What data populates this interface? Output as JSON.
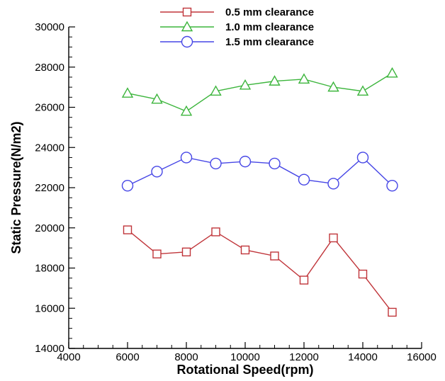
{
  "chart_data": {
    "type": "line",
    "title": "",
    "xlabel": "Rotational Speed(rpm)",
    "ylabel": "Static Pressure(N/m2)",
    "xlim": [
      4000,
      16000
    ],
    "ylim": [
      14000,
      30000
    ],
    "xticks": [
      4000,
      6000,
      8000,
      10000,
      12000,
      14000,
      16000
    ],
    "yticks": [
      14000,
      16000,
      18000,
      20000,
      22000,
      24000,
      26000,
      28000,
      30000
    ],
    "xtick_labels": [
      "4000",
      "6000",
      "8000",
      "10000",
      "12000",
      "14000",
      "16000"
    ],
    "ytick_labels": [
      "14000",
      "16000",
      "18000",
      "20000",
      "22000",
      "24000",
      "26000",
      "28000",
      "30000"
    ],
    "grid": false,
    "legend_position": "top-center",
    "x": [
      6000,
      7000,
      8000,
      9000,
      10000,
      11000,
      12000,
      13000,
      14000,
      15000
    ],
    "series": [
      {
        "name": "0.5 mm clearance",
        "color": "#c0353a",
        "marker": "square",
        "values": [
          19900,
          18700,
          18800,
          19800,
          18900,
          18600,
          17400,
          19500,
          17700,
          15800
        ]
      },
      {
        "name": "1.0 mm clearance",
        "color": "#3cb53c",
        "marker": "triangle",
        "values": [
          26700,
          26400,
          25800,
          26800,
          27100,
          27300,
          27400,
          27000,
          26800,
          27700
        ]
      },
      {
        "name": "1.5 mm clearance",
        "color": "#4646e6",
        "marker": "circle",
        "values": [
          22100,
          22800,
          23500,
          23200,
          23300,
          23200,
          22400,
          22200,
          23500,
          22100
        ]
      }
    ]
  }
}
